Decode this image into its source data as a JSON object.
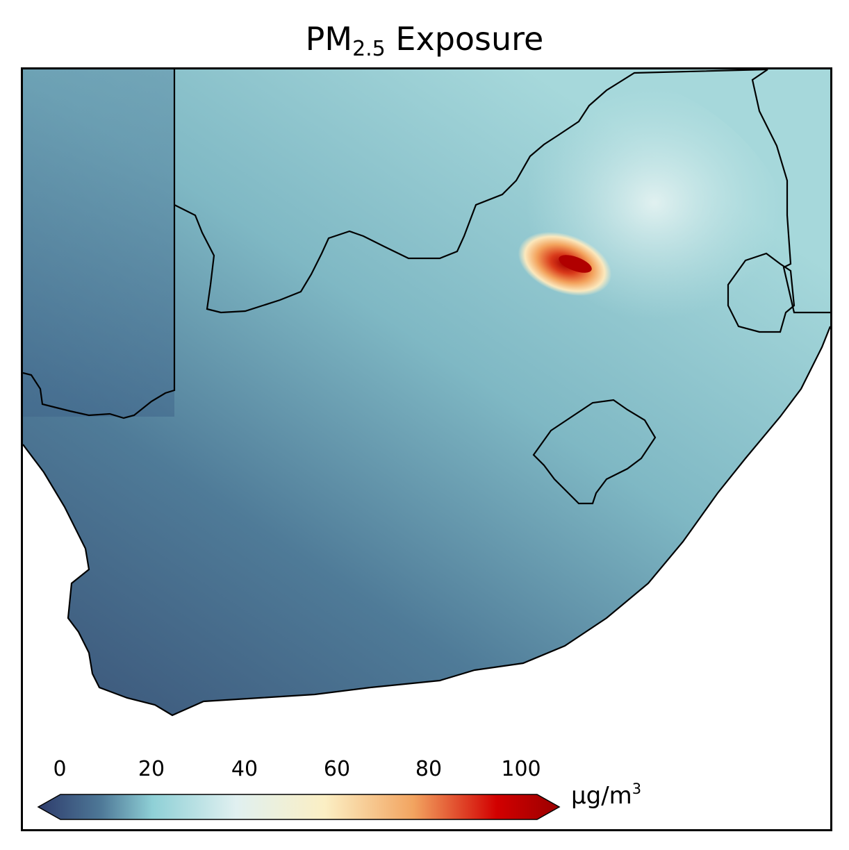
{
  "title": {
    "main": "PM",
    "sub": "2.5",
    "rest": " Exposure"
  },
  "colorbar": {
    "ticks": [
      "0",
      "20",
      "40",
      "60",
      "80",
      "100"
    ],
    "unit": {
      "base": "μg/m",
      "sup": "3"
    },
    "colors": [
      "#2e3c6c",
      "#4e7897",
      "#8fd0d6",
      "#e0f0f0",
      "#fbefc4",
      "#f2a460",
      "#d20000",
      "#9a0000"
    ]
  },
  "map": {
    "hotspot_note_color": "#c81000",
    "land_color_low": "#3d5b82",
    "land_color_mid": "#8ccad2"
  }
}
